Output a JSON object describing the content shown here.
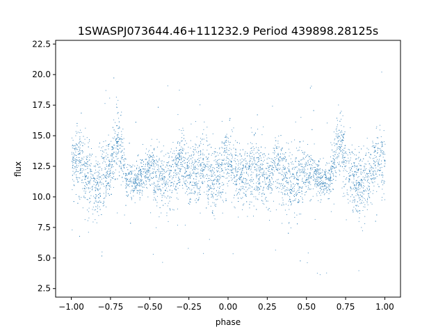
{
  "chart_data": {
    "type": "scatter",
    "title": "1SWASPJ073644.46+111232.9 Period 439898.28125s",
    "xlabel": "phase",
    "ylabel": "flux",
    "xlim": [
      -1.1,
      1.1
    ],
    "ylim": [
      1.8,
      22.8
    ],
    "x_ticks": [
      -1.0,
      -0.75,
      -0.5,
      -0.25,
      0.0,
      0.25,
      0.5,
      0.75,
      1.0
    ],
    "x_tick_labels": [
      "−1.00",
      "−0.75",
      "−0.50",
      "−0.25",
      "0.00",
      "0.25",
      "0.50",
      "0.75",
      "1.00"
    ],
    "y_ticks": [
      2.5,
      5.0,
      7.5,
      10.0,
      12.5,
      15.0,
      17.5,
      20.0,
      22.5
    ],
    "y_tick_labels": [
      "2.5",
      "5.0",
      "7.5",
      "10.0",
      "12.5",
      "15.0",
      "17.5",
      "20.0",
      "22.5"
    ],
    "grid": false,
    "marker_color": "#1f77b4",
    "marker_size": 1,
    "series": [
      {
        "phase_envelope": {
          "x": [
            -1.0,
            -0.95,
            -0.9,
            -0.85,
            -0.8,
            -0.75,
            -0.7,
            -0.65,
            -0.6,
            -0.55,
            -0.5,
            -0.45,
            -0.4,
            -0.35,
            -0.3,
            -0.25,
            -0.2,
            -0.15,
            -0.1,
            -0.05,
            0.0
          ],
          "center": [
            12.8,
            13.0,
            12.0,
            10.5,
            11.5,
            12.5,
            14.8,
            11.5,
            11.2,
            11.8,
            12.2,
            11.5,
            11.0,
            12.0,
            13.0,
            11.5,
            12.0,
            12.5,
            11.2,
            12.0,
            13.5
          ],
          "spread": [
            1.6,
            1.8,
            2.0,
            1.8,
            1.8,
            1.6,
            1.8,
            1.2,
            1.0,
            1.0,
            1.4,
            1.8,
            1.8,
            1.6,
            1.8,
            1.4,
            1.6,
            2.0,
            1.8,
            1.6,
            1.8
          ]
        }
      }
    ]
  }
}
